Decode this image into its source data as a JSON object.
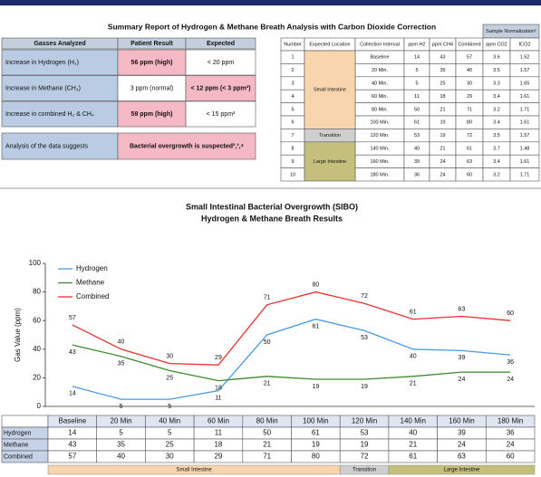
{
  "header": {
    "title": "Summary Report of Hydrogen & Methane Breath Analysis with Carbon Dioxide Correction"
  },
  "summary_table": {
    "columns": [
      "Gasses Analyzed",
      "Patient Result",
      "Expected"
    ],
    "rows": [
      [
        "Increase in Hydrogen (H₂)",
        {
          "text": "56 ppm (high)",
          "highlight": true
        },
        "< 20 ppm"
      ],
      [
        "Increase in Methane (CH₄)",
        "3 ppm (normal)",
        {
          "text": "< 12 ppm (< 3 ppm²)",
          "highlight": true
        }
      ],
      [
        "Increase in combined H₂ & CH₄",
        {
          "text": "59 ppm (high)",
          "highlight": true
        },
        "< 15 ppm³"
      ]
    ],
    "analysis": [
      "Analysis of the data suggests",
      {
        "text": "Bacterial overgrowth is suspected²,³,⁴",
        "highlight": true
      }
    ]
  },
  "sample_table": {
    "group_header": "Sample Normalization¹",
    "columns": [
      "Number",
      "Expected Location",
      "Collection Interval",
      "ppm H2",
      "ppm CH4",
      "Combined",
      "ppm CO2",
      "fCO2"
    ],
    "location_colors": {
      "Small Intestine": "#f9d5ad",
      "Transition": "#cfcfcf",
      "Large Intestine": "#c4c07c"
    },
    "rows": [
      [
        1,
        "Small Intestine",
        "Baseline",
        14,
        43,
        57,
        3.6,
        1.52
      ],
      [
        2,
        "Small Intestine",
        "20 Min.",
        5,
        35,
        40,
        3.5,
        1.57
      ],
      [
        3,
        "Small Intestine",
        "40 Min.",
        5,
        25,
        30,
        3.3,
        1.65
      ],
      [
        4,
        "Small Intestine",
        "60 Min.",
        11,
        18,
        29,
        3.4,
        1.61
      ],
      [
        5,
        "Small Intestine",
        "80 Min.",
        50,
        21,
        71,
        3.2,
        1.71
      ],
      [
        6,
        "Small Intestine",
        "100 Min.",
        61,
        19,
        80,
        3.4,
        1.61
      ],
      [
        7,
        "Transition",
        "120 Min.",
        53,
        19,
        72,
        3.5,
        1.57
      ],
      [
        8,
        "Large Intestine",
        "140 Min.",
        40,
        21,
        61,
        3.7,
        1.48
      ],
      [
        9,
        "Large Intestine",
        "160 Min.",
        39,
        24,
        63,
        3.4,
        1.61
      ],
      [
        10,
        "Large Intestine",
        "180 Min.",
        36,
        24,
        60,
        3.2,
        1.71
      ]
    ]
  },
  "chart_data": {
    "type": "line",
    "title": "Small Intestinal Bacterial Overgrowth (SIBO)",
    "subtitle": "Hydrogen & Methane Breath Results",
    "y_label": "Gas Value (ppm)",
    "categories": [
      "Baseline",
      "20 Min",
      "40 Min",
      "60 Min",
      "80 Min",
      "100 Min",
      "120 Min",
      "140 Min",
      "160 Min",
      "180 Min"
    ],
    "series": [
      {
        "name": "Hydrogen",
        "color": "#4a9be0",
        "label_position": "below",
        "values": [
          14,
          5,
          5,
          11,
          50,
          61,
          53,
          40,
          39,
          36
        ]
      },
      {
        "name": "Methane",
        "color": "#3c8a2e",
        "label_position": "below",
        "values": [
          43,
          35,
          25,
          18,
          21,
          19,
          19,
          21,
          24,
          24
        ]
      },
      {
        "name": "Combined",
        "color": "#e8312f",
        "label_position": "above",
        "values": [
          57,
          40,
          30,
          29,
          71,
          80,
          72,
          61,
          63,
          60
        ]
      }
    ],
    "ylim": [
      0,
      100
    ],
    "yticks": [
      0,
      20,
      40,
      60,
      80,
      100
    ],
    "legend": "upper-left",
    "regions": [
      {
        "label": "Small Intestine",
        "from": "Baseline",
        "to": "100 Min",
        "color": "#f9d5ad"
      },
      {
        "label": "Transition",
        "from": "120 Min",
        "to": "120 Min",
        "color": "#cfcfcf"
      },
      {
        "label": "Large Intestine",
        "from": "140 Min",
        "to": "180 Min",
        "color": "#c4c07c"
      }
    ]
  }
}
